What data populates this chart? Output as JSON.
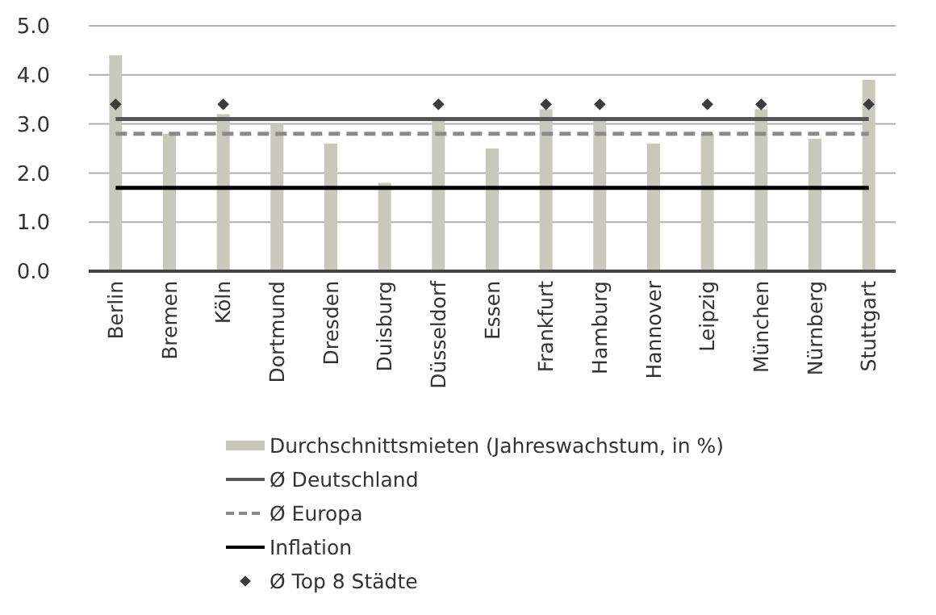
{
  "chart_data": {
    "type": "bar",
    "categories": [
      "Berlin",
      "Bremen",
      "Köln",
      "Dortmund",
      "Dresden",
      "Duisburg",
      "Düsseldorf",
      "Essen",
      "Frankfurt",
      "Hamburg",
      "Hannover",
      "Leipzig",
      "München",
      "Nürnberg",
      "Stuttgart"
    ],
    "series": [
      {
        "name": "Durchschnittsmieten (Jahreswachstum, in %)",
        "color": "#c8c8bc",
        "values": [
          4.4,
          2.8,
          3.2,
          3.0,
          2.6,
          1.8,
          3.1,
          2.5,
          3.3,
          3.1,
          2.6,
          2.8,
          3.3,
          2.7,
          3.9
        ]
      },
      {
        "name": "Ø Deutschland",
        "type": "line",
        "color": "#555555",
        "line_style": "solid",
        "values": [
          3.1,
          3.1,
          3.1,
          3.1,
          3.1,
          3.1,
          3.1,
          3.1,
          3.1,
          3.1,
          3.1,
          3.1,
          3.1,
          3.1,
          3.1
        ]
      },
      {
        "name": "Ø Europa",
        "type": "line",
        "color": "#8a8a8a",
        "line_style": "dashed",
        "values": [
          2.8,
          2.8,
          2.8,
          2.8,
          2.8,
          2.8,
          2.8,
          2.8,
          2.8,
          2.8,
          2.8,
          2.8,
          2.8,
          2.8,
          2.8
        ]
      },
      {
        "name": "Inflation",
        "type": "line",
        "color": "#000000",
        "line_style": "solid",
        "values": [
          1.7,
          1.7,
          1.7,
          1.7,
          1.7,
          1.7,
          1.7,
          1.7,
          1.7,
          1.7,
          1.7,
          1.7,
          1.7,
          1.7,
          1.7
        ]
      },
      {
        "name": "Ø Top 8 Städte",
        "type": "scatter",
        "color": "#3c3c3c",
        "marker": "diamond",
        "values": [
          3.4,
          null,
          3.4,
          null,
          null,
          null,
          3.4,
          null,
          3.4,
          3.4,
          null,
          3.4,
          3.4,
          null,
          3.4
        ]
      }
    ],
    "ylim": [
      0,
      5
    ],
    "yticks": [
      {
        "value": 0,
        "label": "0.0"
      },
      {
        "value": 1,
        "label": "1.0"
      },
      {
        "value": 2,
        "label": "2.0"
      },
      {
        "value": 3,
        "label": "3.0"
      },
      {
        "value": 4,
        "label": "4.0"
      },
      {
        "value": 5,
        "label": "5.0"
      }
    ],
    "grid": "y",
    "legend": "bottom"
  }
}
